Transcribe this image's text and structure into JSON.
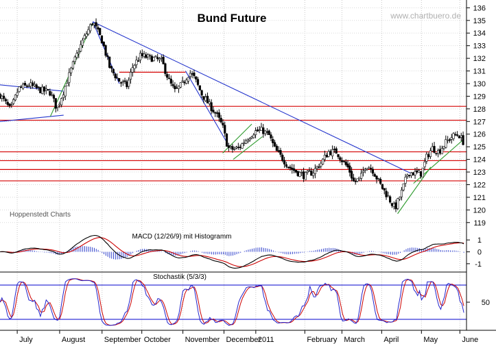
{
  "chart_data": [
    {
      "type": "candlestick",
      "title": "Bund Future",
      "watermark": "www.chartbuero.de",
      "source_label": "Hoppenstedt Charts",
      "y_ticks": [
        119,
        120,
        121,
        122,
        123,
        124,
        125,
        126,
        127,
        128,
        129,
        130,
        131,
        132,
        133,
        134,
        135,
        136
      ],
      "ylim": [
        118.5,
        136.4
      ],
      "x_ticks": [
        {
          "label": "July",
          "day": 13
        },
        {
          "label": "August",
          "day": 45
        },
        {
          "label": "September",
          "day": 77
        },
        {
          "label": "October",
          "day": 107
        },
        {
          "label": "November",
          "day": 138
        },
        {
          "label": "December",
          "day": 169
        },
        {
          "label": "2011",
          "day": 193
        },
        {
          "label": "February",
          "day": 230
        },
        {
          "label": "March",
          "day": 258
        },
        {
          "label": "April",
          "day": 288
        },
        {
          "label": "May",
          "day": 318
        },
        {
          "label": "June",
          "day": 347
        }
      ],
      "xlim": [
        0,
        352
      ],
      "price_path": [
        [
          0,
          129.1
        ],
        [
          8,
          127.9
        ],
        [
          14,
          129.6
        ],
        [
          22,
          129.9
        ],
        [
          30,
          129.5
        ],
        [
          38,
          129.3
        ],
        [
          43,
          128.0
        ],
        [
          48,
          129.4
        ],
        [
          55,
          131.5
        ],
        [
          62,
          133.3
        ],
        [
          70,
          134.9
        ],
        [
          77,
          133.4
        ],
        [
          83,
          131.2
        ],
        [
          90,
          130.2
        ],
        [
          96,
          129.8
        ],
        [
          100,
          131.3
        ],
        [
          106,
          132.2
        ],
        [
          115,
          132.0
        ],
        [
          122,
          131.8
        ],
        [
          128,
          130.1
        ],
        [
          132,
          129.4
        ],
        [
          138,
          130.0
        ],
        [
          143,
          130.9
        ],
        [
          147,
          130.4
        ],
        [
          152,
          129.2
        ],
        [
          158,
          128.3
        ],
        [
          163,
          127.6
        ],
        [
          168,
          126.6
        ],
        [
          172,
          124.9
        ],
        [
          176,
          124.8
        ],
        [
          180,
          124.9
        ],
        [
          186,
          125.6
        ],
        [
          192,
          126.2
        ],
        [
          198,
          126.3
        ],
        [
          203,
          125.9
        ],
        [
          208,
          124.7
        ],
        [
          213,
          124.1
        ],
        [
          218,
          123.4
        ],
        [
          224,
          123.0
        ],
        [
          230,
          122.7
        ],
        [
          236,
          123.0
        ],
        [
          242,
          123.7
        ],
        [
          248,
          124.6
        ],
        [
          254,
          124.6
        ],
        [
          259,
          123.8
        ],
        [
          263,
          123.3
        ],
        [
          267,
          122.2
        ],
        [
          272,
          122.5
        ],
        [
          276,
          123.6
        ],
        [
          281,
          123.2
        ],
        [
          287,
          122.0
        ],
        [
          293,
          121.0
        ],
        [
          298,
          120.1
        ],
        [
          303,
          121.4
        ],
        [
          308,
          123.0
        ],
        [
          313,
          122.9
        ],
        [
          318,
          122.9
        ],
        [
          322,
          124.2
        ],
        [
          326,
          124.9
        ],
        [
          331,
          124.6
        ],
        [
          336,
          125.3
        ],
        [
          341,
          125.8
        ],
        [
          346,
          126.0
        ],
        [
          350,
          125.3
        ]
      ],
      "resistance_levels": [
        128.2,
        127.1,
        124.6,
        123.9,
        123.2,
        122.3
      ],
      "support_line": 130.9,
      "trendlines": [
        {
          "from": [
            0,
            127.0
          ],
          "to": [
            48,
            127.5
          ],
          "color": "blue"
        },
        {
          "from": [
            0,
            129.9
          ],
          "to": [
            48,
            129.4
          ],
          "color": "blue"
        },
        {
          "from": [
            70,
            134.9
          ],
          "to": [
            312,
            122.8
          ],
          "color": "blue"
        },
        {
          "from": [
            70,
            134.9
          ],
          "to": [
            90,
            130.0
          ],
          "color": "blue"
        },
        {
          "from": [
            140,
            131.0
          ],
          "to": [
            172,
            125.2
          ],
          "color": "blue"
        },
        {
          "from": [
            38,
            127.4
          ],
          "to": [
            70,
            134.8
          ],
          "color": "green"
        },
        {
          "from": [
            168,
            124.5
          ],
          "to": [
            190,
            126.8
          ],
          "color": "green"
        },
        {
          "from": [
            176,
            124.0
          ],
          "to": [
            198,
            125.8
          ],
          "color": "green"
        },
        {
          "from": [
            300,
            119.7
          ],
          "to": [
            325,
            123.4
          ],
          "color": "green"
        },
        {
          "from": [
            312,
            122.1
          ],
          "to": [
            350,
            125.6
          ],
          "color": "green"
        }
      ]
    },
    {
      "type": "line",
      "title": "MACD (12/26/9) mit Histogramm",
      "y_ticks": [
        1,
        0,
        -1
      ],
      "ylim": [
        -1.7,
        1.7
      ],
      "series": []
    },
    {
      "type": "line",
      "title": "Stochastik (5/3/3)",
      "y_ticks": [
        50
      ],
      "ylim": [
        0,
        100
      ],
      "levels": [
        80,
        20
      ],
      "series": []
    }
  ]
}
